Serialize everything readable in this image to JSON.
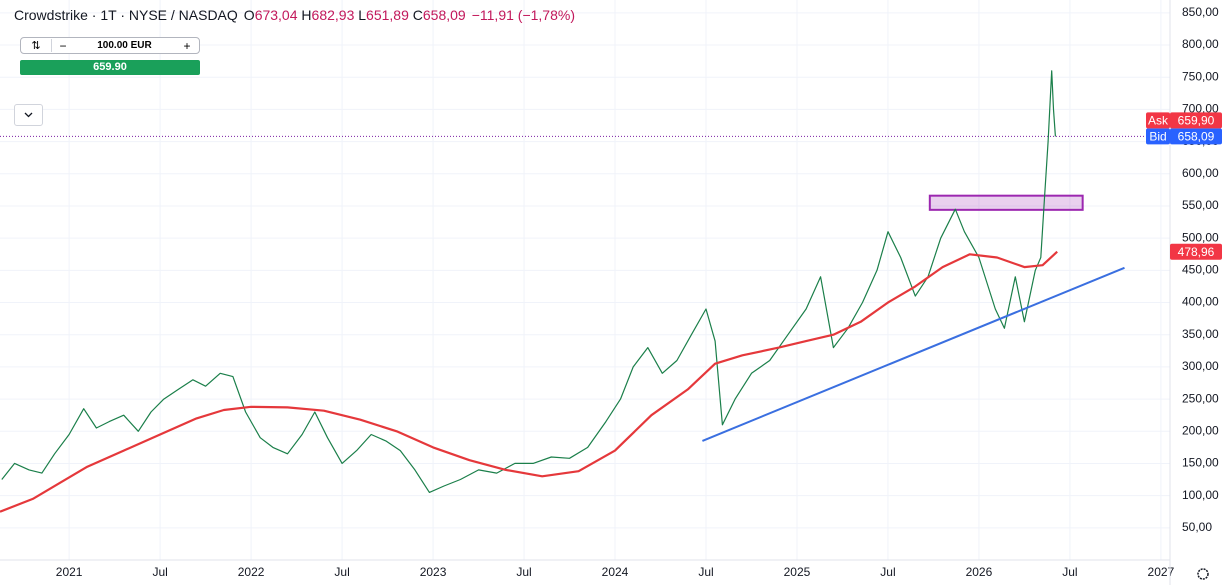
{
  "header": {
    "title": "Crowdstrike · 1T · NYSE / NASDAQ",
    "ohlc": [
      {
        "key": "O",
        "value": "673,04"
      },
      {
        "key": "H",
        "value": "682,93"
      },
      {
        "key": "L",
        "value": "651,89"
      },
      {
        "key": "C",
        "value": "658,09"
      }
    ],
    "change": "−11,91 (−1,78%)"
  },
  "order_widget": {
    "quantity": "100.00 EUR",
    "price": "659.90"
  },
  "chart_data": {
    "type": "line",
    "xlim": [
      2020.62,
      2027.05
    ],
    "ylim": [
      0,
      870
    ],
    "xticks": [
      {
        "value": 2021,
        "label": "2021"
      },
      {
        "value": 2021.5,
        "label": "Jul"
      },
      {
        "value": 2022,
        "label": "2022"
      },
      {
        "value": 2022.5,
        "label": "Jul"
      },
      {
        "value": 2023,
        "label": "2023"
      },
      {
        "value": 2023.5,
        "label": "Jul"
      },
      {
        "value": 2024,
        "label": "2024"
      },
      {
        "value": 2024.5,
        "label": "Jul"
      },
      {
        "value": 2025,
        "label": "2025"
      },
      {
        "value": 2025.5,
        "label": "Jul"
      },
      {
        "value": 2026,
        "label": "2026"
      },
      {
        "value": 2026.5,
        "label": "Jul"
      },
      {
        "value": 2027,
        "label": "2027"
      }
    ],
    "yticks": [
      {
        "value": 50,
        "label": "50,00"
      },
      {
        "value": 100,
        "label": "100,00"
      },
      {
        "value": 150,
        "label": "150,00"
      },
      {
        "value": 200,
        "label": "200,00"
      },
      {
        "value": 250,
        "label": "250,00"
      },
      {
        "value": 300,
        "label": "300,00"
      },
      {
        "value": 350,
        "label": "350,00"
      },
      {
        "value": 400,
        "label": "400,00"
      },
      {
        "value": 450,
        "label": "450,00"
      },
      {
        "value": 500,
        "label": "500,00"
      },
      {
        "value": 550,
        "label": "550,00"
      },
      {
        "value": 600,
        "label": "600,00"
      },
      {
        "value": 650,
        "label": "650,00"
      },
      {
        "value": 700,
        "label": "700,00"
      },
      {
        "value": 750,
        "label": "750,00"
      },
      {
        "value": 800,
        "label": "800,00"
      },
      {
        "value": 850,
        "label": "850,00"
      }
    ],
    "grid": true,
    "series": [
      {
        "color": "#1b7f4a",
        "x": [
          2020.63,
          2020.7,
          2020.78,
          2020.85,
          2020.92,
          2021.0,
          2021.08,
          2021.15,
          2021.22,
          2021.3,
          2021.38,
          2021.45,
          2021.52,
          2021.6,
          2021.68,
          2021.75,
          2021.83,
          2021.9,
          2021.97,
          2022.05,
          2022.12,
          2022.2,
          2022.28,
          2022.35,
          2022.42,
          2022.5,
          2022.58,
          2022.66,
          2022.74,
          2022.82,
          2022.9,
          2022.98,
          2023.06,
          2023.15,
          2023.25,
          2023.35,
          2023.45,
          2023.55,
          2023.65,
          2023.75,
          2023.85,
          2023.95,
          2024.03,
          2024.1,
          2024.18,
          2024.26,
          2024.34,
          2024.42,
          2024.5,
          2024.55,
          2024.59,
          2024.66,
          2024.75,
          2024.85,
          2024.95,
          2025.05,
          2025.13,
          2025.2,
          2025.28,
          2025.36,
          2025.44,
          2025.5,
          2025.57,
          2025.65,
          2025.72,
          2025.79,
          2025.87,
          2025.92,
          2026.0,
          2026.09,
          2026.14,
          2026.2,
          2026.25,
          2026.31,
          2026.34,
          2026.36,
          2026.38,
          2026.4,
          2026.41,
          2026.42
        ],
        "values": [
          125,
          150,
          140,
          135,
          165,
          195,
          235,
          205,
          215,
          225,
          200,
          230,
          250,
          265,
          280,
          270,
          290,
          285,
          230,
          190,
          175,
          165,
          195,
          230,
          190,
          150,
          170,
          195,
          185,
          170,
          140,
          105,
          115,
          125,
          140,
          135,
          150,
          150,
          160,
          158,
          175,
          215,
          250,
          300,
          330,
          290,
          310,
          350,
          390,
          340,
          210,
          250,
          290,
          310,
          350,
          390,
          440,
          330,
          360,
          400,
          450,
          510,
          470,
          410,
          440,
          500,
          545,
          510,
          470,
          390,
          360,
          440,
          370,
          450,
          470,
          560,
          650,
          760,
          700,
          658.09
        ]
      },
      {
        "color": "#e5383b",
        "x": [
          2020.62,
          2020.8,
          2020.95,
          2021.1,
          2021.3,
          2021.5,
          2021.7,
          2021.85,
          2022.0,
          2022.2,
          2022.4,
          2022.6,
          2022.8,
          2023.0,
          2023.2,
          2023.4,
          2023.6,
          2023.8,
          2024.0,
          2024.2,
          2024.4,
          2024.55,
          2024.7,
          2024.9,
          2025.05,
          2025.2,
          2025.35,
          2025.5,
          2025.65,
          2025.8,
          2025.95,
          2026.1,
          2026.25,
          2026.35,
          2026.43
        ],
        "values": [
          75,
          95,
          120,
          145,
          170,
          195,
          220,
          233,
          238,
          237,
          232,
          218,
          200,
          175,
          155,
          140,
          130,
          138,
          170,
          225,
          265,
          305,
          318,
          330,
          340,
          350,
          370,
          400,
          425,
          455,
          475,
          470,
          455,
          458,
          478.96
        ]
      }
    ],
    "trendline": {
      "color": "#3a6fe0",
      "x": [
        2024.48,
        2026.8
      ],
      "values": [
        185,
        454
      ]
    },
    "zone": {
      "color": "#9c27b0",
      "x": [
        2025.73,
        2026.57
      ],
      "values": [
        544,
        566
      ]
    },
    "price_markers": [
      {
        "name": "Ask",
        "value": 659.9,
        "label": "659,90",
        "color": "#f23645"
      },
      {
        "name": "Bid",
        "value": 658.09,
        "label": "658,09",
        "color": "#2962ff"
      },
      {
        "value": 478.96,
        "label": "478,96",
        "color": "#f23645"
      }
    ]
  }
}
